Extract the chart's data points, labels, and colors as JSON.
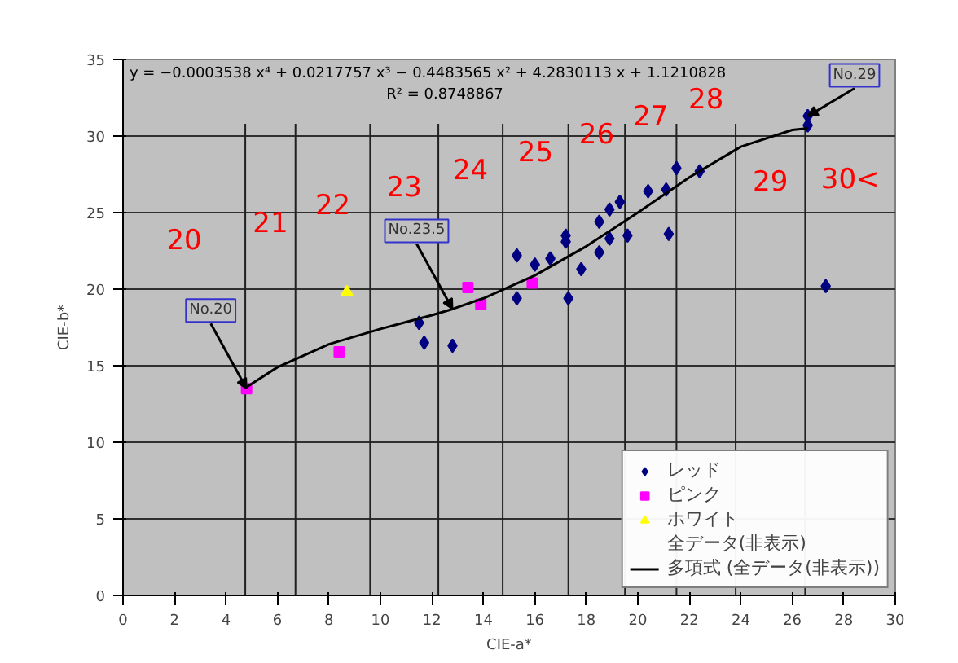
{
  "chart_data": {
    "type": "scatter",
    "xlabel": "CIE-a*",
    "ylabel": "CIE-b*",
    "xlim": [
      0,
      30
    ],
    "ylim": [
      0,
      35
    ],
    "xticks": [
      0,
      2,
      4,
      6,
      8,
      10,
      12,
      14,
      16,
      18,
      20,
      22,
      24,
      26,
      28,
      30
    ],
    "yticks": [
      0,
      5,
      10,
      15,
      20,
      25,
      30,
      35
    ],
    "grid": "y",
    "legend": "bottom right",
    "series": [
      {
        "name": "レッド",
        "color": "#000080",
        "marker": "diamond",
        "x": [
          11.5,
          11.7,
          12.8,
          15.3,
          15.3,
          16.0,
          16.6,
          17.2,
          17.2,
          17.3,
          17.8,
          18.5,
          18.5,
          18.9,
          18.9,
          19.3,
          19.6,
          20.4,
          21.1,
          21.2,
          21.5,
          22.4,
          26.6,
          26.6,
          27.3
        ],
        "values": [
          17.8,
          16.5,
          16.3,
          22.2,
          19.4,
          21.6,
          22.0,
          23.5,
          23.1,
          19.4,
          21.3,
          24.4,
          22.4,
          23.3,
          25.2,
          25.7,
          23.5,
          26.4,
          26.5,
          23.6,
          27.9,
          27.7,
          31.3,
          30.7,
          20.2
        ]
      },
      {
        "name": "ピンク",
        "color": "#ff00ff",
        "marker": "square",
        "x": [
          4.8,
          8.4,
          13.4,
          13.9,
          15.9
        ],
        "values": [
          13.5,
          15.9,
          20.1,
          19.0,
          20.4
        ]
      },
      {
        "name": "ホワイト",
        "color": "#ffff00",
        "marker": "triangle",
        "x": [
          8.7
        ],
        "values": [
          19.8
        ]
      },
      {
        "name": "全データ(非表示)",
        "marker": "none"
      },
      {
        "name": "多項式 (全データ(非表示))",
        "type": "line",
        "color": "#000000",
        "line_style": "solid",
        "x": [
          4.8,
          6,
          8,
          10,
          12,
          12.8,
          14,
          16,
          18,
          20,
          22,
          24,
          26,
          26.6
        ],
        "values": [
          13.6,
          14.9,
          16.4,
          17.4,
          18.3,
          18.7,
          19.4,
          20.9,
          22.8,
          25.0,
          27.3,
          29.3,
          30.4,
          30.5
        ]
      }
    ],
    "ref_lines": [
      {
        "axis": "x",
        "value": 4.75,
        "color": "#202020"
      },
      {
        "axis": "x",
        "value": 6.7,
        "color": "#202020"
      },
      {
        "axis": "x",
        "value": 9.6,
        "color": "#202020"
      },
      {
        "axis": "x",
        "value": 12.25,
        "color": "#202020"
      },
      {
        "axis": "x",
        "value": 14.75,
        "color": "#202020"
      },
      {
        "axis": "x",
        "value": 17.3,
        "color": "#202020"
      },
      {
        "axis": "x",
        "value": 19.5,
        "color": "#202020"
      },
      {
        "axis": "x",
        "value": 21.5,
        "color": "#202020"
      },
      {
        "axis": "x",
        "value": 23.8,
        "color": "#202020"
      },
      {
        "axis": "x",
        "value": 26.5,
        "color": "#202020"
      }
    ],
    "annotations": [
      "y = −0.0003538 x⁴ + 0.0217757 x³ − 0.4483565 x² + 4.2830113 x + 1.1210828",
      "R² = 0.8748867",
      "20",
      "21",
      "22",
      "23",
      "24",
      "25",
      "26",
      "27",
      "28",
      "29",
      "30<",
      {
        "text": "No.20",
        "x": 4.8,
        "y": 13.5
      },
      {
        "text": "No.23.5",
        "x": 12.8,
        "y": 18.7
      },
      {
        "text": "No.29",
        "x": 26.6,
        "y": 31.3
      }
    ]
  }
}
